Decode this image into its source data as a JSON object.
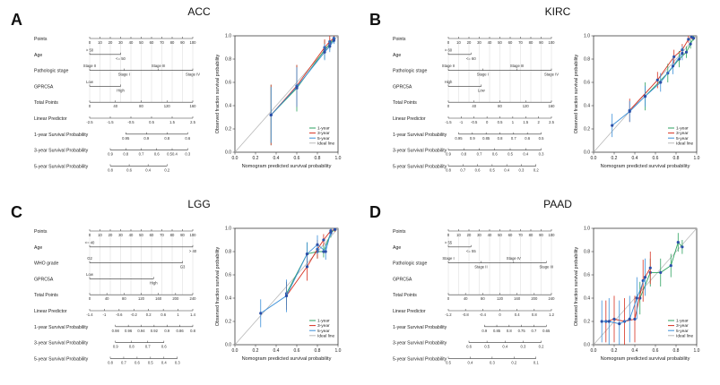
{
  "colors": {
    "one_year": "#2ca25f",
    "three_year": "#d7301f",
    "five_year": "#3a8fd8",
    "ideal": "#b9b9b9",
    "axis": "#222222",
    "grid": "#cfcfcf"
  },
  "panels": [
    {
      "letter": "A",
      "title": "ACC",
      "nomogram": {
        "rows": [
          {
            "label": "Points",
            "ticks": [
              "0",
              "10",
              "20",
              "30",
              "40",
              "50",
              "60",
              "70",
              "80",
              "90",
              "100"
            ]
          },
          {
            "label": "Age",
            "ticks": [
              "> 50",
              "<= 50"
            ]
          },
          {
            "label": "Pathologic stage",
            "ticks": [
              "Stage II",
              "Stage I",
              "Stage III",
              "Stage IV"
            ]
          },
          {
            "label": "GPRC5A",
            "ticks": [
              "Low",
              "High"
            ]
          },
          {
            "label": "Total Points",
            "ticks": [
              "0",
              "40",
              "80",
              "120",
              "160"
            ]
          },
          {
            "label": "Linear Predictor",
            "ticks": [
              "-2.5",
              "-1.5",
              "-0.5",
              "0.5",
              "1.5",
              "2.5"
            ]
          },
          {
            "label": "1-year Survival Probability",
            "ticks": [
              "0.95",
              "0.9",
              "0.8",
              "0.6"
            ]
          },
          {
            "label": "3-year Survival Probability",
            "ticks": [
              "0.9",
              "0.8",
              "0.7",
              "0.6",
              "0.50.4",
              "0.3"
            ]
          },
          {
            "label": "5-year Survival Probability",
            "ticks": [
              "0.8",
              "0.6",
              "0.4",
              "0.2"
            ]
          }
        ]
      },
      "chart_data": {
        "type": "line",
        "title": "",
        "xlabel": "Nomogram predicted survival probability",
        "ylabel": "Observed fraction survival probability",
        "xlim": [
          0,
          1
        ],
        "ylim": [
          0,
          1
        ],
        "ticks": [
          "0.0",
          "0.2",
          "0.4",
          "0.6",
          "0.8",
          "1.0"
        ],
        "legend": [
          "1-year",
          "3-year",
          "5-year",
          "Ideal line"
        ],
        "series": [
          {
            "name": "1-year",
            "x": [
              0.35,
              0.6,
              0.87,
              0.92,
              0.96
            ],
            "y": [
              0.32,
              0.55,
              0.88,
              0.93,
              0.97
            ],
            "err": [
              0.26,
              0.2,
              0.08,
              0.05,
              0.03
            ]
          },
          {
            "name": "3-year",
            "x": [
              0.35,
              0.6,
              0.87,
              0.92,
              0.96
            ],
            "y": [
              0.32,
              0.57,
              0.9,
              0.95,
              0.98
            ],
            "err": [
              0.26,
              0.18,
              0.07,
              0.05,
              0.03
            ]
          },
          {
            "name": "5-year",
            "x": [
              0.35,
              0.6,
              0.87,
              0.92,
              0.96
            ],
            "y": [
              0.32,
              0.56,
              0.86,
              0.91,
              0.96
            ],
            "err": [
              0.24,
              0.17,
              0.07,
              0.05,
              0.03
            ]
          }
        ]
      }
    },
    {
      "letter": "B",
      "title": "KIRC",
      "nomogram": {
        "rows": [
          {
            "label": "Points",
            "ticks": [
              "0",
              "10",
              "20",
              "30",
              "40",
              "50",
              "60",
              "70",
              "80",
              "90",
              "100"
            ]
          },
          {
            "label": "Age",
            "ticks": [
              "> 60",
              "<= 60"
            ]
          },
          {
            "label": "Pathologic stage",
            "ticks": [
              "Stage II",
              "Stage I",
              "Stage III",
              "Stage IV"
            ]
          },
          {
            "label": "GPRC5A",
            "ticks": [
              "High",
              "Low"
            ]
          },
          {
            "label": "Total Points",
            "ticks": [
              "0",
              "40",
              "80",
              "120",
              "160"
            ]
          },
          {
            "label": "Linear Predictor",
            "ticks": [
              "-1.5",
              "-1",
              "-0.5",
              "0",
              "0.5",
              "1",
              "1.5",
              "2",
              "2.5"
            ]
          },
          {
            "label": "1-year Survival Probability",
            "ticks": [
              "0.95",
              "0.9",
              "0.85",
              "0.8",
              "0.7",
              "0.6",
              "0.5"
            ]
          },
          {
            "label": "3-year Survival Probability",
            "ticks": [
              "0.9",
              "0.8",
              "0.7",
              "0.6",
              "0.5",
              "0.4",
              "0.3"
            ]
          },
          {
            "label": "5-year Survival Probability",
            "ticks": [
              "0.8",
              "0.7",
              "0.6",
              "0.5",
              "0.4",
              "0.3",
              "0.2"
            ]
          }
        ]
      },
      "chart_data": {
        "type": "line",
        "title": "",
        "xlabel": "Nomogram predicted survival probability",
        "ylabel": "Observed fraction survival probability",
        "xlim": [
          0,
          1
        ],
        "ylim": [
          0,
          1
        ],
        "ticks": [
          "0.0",
          "0.2",
          "0.4",
          "0.6",
          "0.8",
          "1.0"
        ],
        "legend": [
          "1-year",
          "3-year",
          "5-year",
          "Ideal line"
        ],
        "series": [
          {
            "name": "1-year",
            "x": [
              0.5,
              0.72,
              0.83,
              0.9,
              0.94,
              0.97
            ],
            "y": [
              0.48,
              0.68,
              0.8,
              0.86,
              0.93,
              0.98
            ],
            "err": [
              0.12,
              0.08,
              0.07,
              0.05,
              0.04,
              0.02
            ]
          },
          {
            "name": "3-year",
            "x": [
              0.35,
              0.62,
              0.78,
              0.86,
              0.92,
              0.95
            ],
            "y": [
              0.36,
              0.62,
              0.82,
              0.88,
              0.97,
              0.99
            ],
            "err": [
              0.1,
              0.07,
              0.06,
              0.05,
              0.03,
              0.02
            ]
          },
          {
            "name": "5-year",
            "x": [
              0.18,
              0.35,
              0.5,
              0.65,
              0.77,
              0.86
            ],
            "y": [
              0.23,
              0.35,
              0.48,
              0.6,
              0.74,
              0.85
            ],
            "err": [
              0.1,
              0.09,
              0.09,
              0.08,
              0.07,
              0.06
            ]
          }
        ]
      }
    },
    {
      "letter": "C",
      "title": "LGG",
      "nomogram": {
        "rows": [
          {
            "label": "Points",
            "ticks": [
              "0",
              "10",
              "20",
              "30",
              "40",
              "50",
              "60",
              "70",
              "80",
              "90",
              "100"
            ]
          },
          {
            "label": "Age",
            "ticks": [
              "<= 40",
              "> 40"
            ]
          },
          {
            "label": "WHO grade",
            "ticks": [
              "G2",
              "G3"
            ]
          },
          {
            "label": "GPRC5A",
            "ticks": [
              "Low",
              "High"
            ]
          },
          {
            "label": "Total Points",
            "ticks": [
              "0",
              "40",
              "80",
              "120",
              "160",
              "200",
              "240"
            ]
          },
          {
            "label": "Linear Predictor",
            "ticks": [
              "-1.4",
              "-1",
              "-0.6",
              "-0.2",
              "0.2",
              "0.6",
              "1",
              "1.4"
            ]
          },
          {
            "label": "1-year Survival Probability",
            "ticks": [
              "0.98",
              "0.96",
              "0.94",
              "0.92",
              "0.9",
              "0.86",
              "0.8"
            ]
          },
          {
            "label": "3-year Survival Probability",
            "ticks": [
              "0.9",
              "0.8",
              "0.7",
              "0.6"
            ]
          },
          {
            "label": "5-year Survival Probability",
            "ticks": [
              "0.8",
              "0.7",
              "0.6",
              "0.5",
              "0.4",
              "0.3"
            ]
          }
        ]
      },
      "chart_data": {
        "type": "line",
        "title": "",
        "xlabel": "Nomogram predicted survival probability",
        "ylabel": "Observed fraction survival probability",
        "xlim": [
          0,
          1
        ],
        "ylim": [
          0,
          1
        ],
        "ticks": [
          "0.0",
          "0.2",
          "0.4",
          "0.6",
          "0.8",
          "1.0"
        ],
        "legend": [
          "1-year",
          "3-year",
          "5-year",
          "Ideal line"
        ],
        "series": [
          {
            "name": "1-year",
            "x": [
              0.5,
              0.7,
              0.8,
              0.86,
              0.93,
              0.97
            ],
            "y": [
              0.44,
              0.78,
              0.8,
              0.8,
              0.96,
              0.99
            ],
            "err": [
              0.1,
              0.1,
              0.06,
              0.05,
              0.04,
              0.02
            ]
          },
          {
            "name": "3-year",
            "x": [
              0.5,
              0.7,
              0.8,
              0.86,
              0.93,
              0.97
            ],
            "y": [
              0.42,
              0.67,
              0.82,
              0.9,
              0.98,
              0.99
            ],
            "err": [
              0.12,
              0.12,
              0.08,
              0.05,
              0.03,
              0.02
            ]
          },
          {
            "name": "5-year",
            "x": [
              0.25,
              0.5,
              0.7,
              0.8,
              0.88,
              0.93
            ],
            "y": [
              0.27,
              0.42,
              0.78,
              0.86,
              0.8,
              0.97
            ],
            "err": [
              0.12,
              0.14,
              0.1,
              0.08,
              0.07,
              0.04
            ]
          }
        ]
      }
    },
    {
      "letter": "D",
      "title": "PAAD",
      "nomogram": {
        "rows": [
          {
            "label": "Points",
            "ticks": [
              "0",
              "10",
              "20",
              "30",
              "40",
              "50",
              "60",
              "70",
              "80",
              "90",
              "100"
            ]
          },
          {
            "label": "Age",
            "ticks": [
              "> 55",
              "<= 55"
            ]
          },
          {
            "label": "Pathologic stage",
            "ticks": [
              "Stage I",
              "Stage II",
              "Stage IV",
              "Stage III"
            ]
          },
          {
            "label": "GPRC5A",
            "ticks": []
          },
          {
            "label": "Total Points",
            "ticks": [
              "0",
              "40",
              "80",
              "120",
              "160",
              "200",
              "240"
            ]
          },
          {
            "label": "Linear Predictor",
            "ticks": [
              "-1.2",
              "-0.8",
              "-0.4",
              "0",
              "0.4",
              "0.8",
              "1.2"
            ]
          },
          {
            "label": "1-year Survival Probability",
            "ticks": [
              "0.9",
              "0.85",
              "0.8",
              "0.75",
              "0.7",
              "0.65"
            ]
          },
          {
            "label": "3-year Survival Probability",
            "ticks": [
              "0.6",
              "0.5",
              "0.4",
              "0.3",
              "0.2"
            ]
          },
          {
            "label": "5-year Survival Probability",
            "ticks": [
              "0.5",
              "0.4",
              "0.3",
              "0.2",
              "0.1"
            ]
          }
        ]
      },
      "chart_data": {
        "type": "line",
        "title": "",
        "xlabel": "Nomogram predicted survival probability",
        "ylabel": "Observed fraction survival probability",
        "xlim": [
          0,
          1
        ],
        "ylim": [
          0,
          1
        ],
        "ticks": [
          "0.0",
          "0.2",
          "0.4",
          "0.6",
          "0.8",
          "1.0"
        ],
        "legend": [
          "1-year",
          "3-year",
          "5-year",
          "Ideal line"
        ],
        "series": [
          {
            "name": "1-year",
            "x": [
              0.45,
              0.55,
              0.65,
              0.75,
              0.82,
              0.86
            ],
            "y": [
              0.4,
              0.62,
              0.62,
              0.68,
              0.88,
              0.84
            ],
            "err": [
              0.14,
              0.12,
              0.12,
              0.1,
              0.08,
              0.06
            ]
          },
          {
            "name": "3-year",
            "x": [
              0.12,
              0.2,
              0.3,
              0.4,
              0.48,
              0.55
            ],
            "y": [
              0.2,
              0.22,
              0.2,
              0.22,
              0.55,
              0.66
            ],
            "err": [
              0.18,
              0.2,
              0.2,
              0.2,
              0.18,
              0.14
            ]
          },
          {
            "name": "5-year",
            "x": [
              0.08,
              0.15,
              0.25,
              0.35,
              0.42,
              0.5
            ],
            "y": [
              0.2,
              0.2,
              0.18,
              0.22,
              0.4,
              0.58
            ],
            "err": [
              0.18,
              0.2,
              0.2,
              0.2,
              0.18,
              0.16
            ]
          }
        ]
      }
    }
  ]
}
